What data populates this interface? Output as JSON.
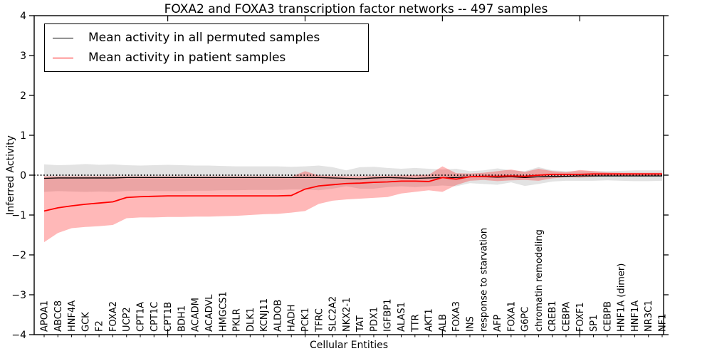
{
  "figure": {
    "title": "FOXA2 and FOXA3 transcription factor networks -- 497 samples",
    "xlabel": "Cellular Entities",
    "ylabel": "Inferred Activity"
  },
  "legend": {
    "items": [
      {
        "key": "permuted",
        "label": "Mean activity in all permuted samples",
        "color": "#000000"
      },
      {
        "key": "patient",
        "label": "Mean activity in patient samples",
        "color": "#ff0000"
      }
    ]
  },
  "chart_data": {
    "type": "line",
    "title": "FOXA2 and FOXA3 transcription factor networks -- 497 samples",
    "xlabel": "Cellular Entities",
    "ylabel": "Inferred Activity",
    "ylim": [
      -4,
      4
    ],
    "yticks": [
      -4,
      -3,
      -2,
      -1,
      0,
      1,
      2,
      3,
      4
    ],
    "zero_line": 0,
    "grid": false,
    "legend_position": "upper left",
    "x_major_tick_indices": [
      9,
      19,
      29,
      39
    ],
    "categories": [
      "APOA1",
      "ABCC8",
      "HNF4A",
      "GCK",
      "F2",
      "FOXA2",
      "UCP2",
      "CPT1A",
      "CPT1C",
      "CPT1B",
      "BDH1",
      "ACADM",
      "ACADVL",
      "HMGCS1",
      "PKLR",
      "DLK1",
      "KCNJ11",
      "ALDOB",
      "HADH",
      "PCK1",
      "TFRC",
      "SLC2A2",
      "NKX2-1",
      "TAT",
      "PDX1",
      "IGFBP1",
      "ALAS1",
      "TTR",
      "AKT1",
      "ALB",
      "FOXA3",
      "INS",
      "response to starvation",
      "AFP",
      "FOXA1",
      "G6PC",
      "chromatin remodeling",
      "CREB1",
      "CEBPA",
      "FOXF1",
      "SP1",
      "CEBPB",
      "HNF1A (dimer)",
      "HNF1A",
      "NR3C1",
      "NF1"
    ],
    "series": [
      {
        "key": "permuted",
        "name": "Mean activity in all permuted samples",
        "color": "#000000",
        "line_width": 1.3,
        "band_color": "rgba(0,0,0,0.11)",
        "values": [
          -0.08,
          -0.07,
          -0.07,
          -0.07,
          -0.07,
          -0.07,
          -0.06,
          -0.06,
          -0.06,
          -0.06,
          -0.06,
          -0.06,
          -0.06,
          -0.06,
          -0.06,
          -0.06,
          -0.06,
          -0.06,
          -0.06,
          -0.06,
          -0.06,
          -0.07,
          -0.08,
          -0.09,
          -0.07,
          -0.06,
          -0.07,
          -0.08,
          -0.07,
          -0.06,
          -0.06,
          -0.04,
          -0.04,
          -0.05,
          -0.04,
          -0.06,
          -0.04,
          -0.03,
          -0.03,
          -0.02,
          -0.02,
          -0.02,
          -0.02,
          -0.02,
          -0.02,
          -0.02
        ],
        "band_upper": [
          0.27,
          0.25,
          0.26,
          0.28,
          0.26,
          0.27,
          0.25,
          0.24,
          0.25,
          0.26,
          0.25,
          0.24,
          0.24,
          0.23,
          0.22,
          0.22,
          0.22,
          0.22,
          0.21,
          0.22,
          0.24,
          0.2,
          0.12,
          0.2,
          0.21,
          0.18,
          0.16,
          0.18,
          0.16,
          0.14,
          0.16,
          0.1,
          0.12,
          0.17,
          0.12,
          0.1,
          0.2,
          0.12,
          0.1,
          0.1,
          0.1,
          0.1,
          0.11,
          0.12,
          0.12,
          0.12
        ],
        "band_lower": [
          -0.42,
          -0.4,
          -0.41,
          -0.42,
          -0.41,
          -0.42,
          -0.4,
          -0.39,
          -0.4,
          -0.4,
          -0.4,
          -0.39,
          -0.39,
          -0.38,
          -0.38,
          -0.37,
          -0.37,
          -0.37,
          -0.36,
          -0.36,
          -0.38,
          -0.34,
          -0.28,
          -0.34,
          -0.34,
          -0.3,
          -0.28,
          -0.3,
          -0.28,
          -0.26,
          -0.28,
          -0.2,
          -0.22,
          -0.24,
          -0.18,
          -0.27,
          -0.22,
          -0.16,
          -0.14,
          -0.14,
          -0.14,
          -0.13,
          -0.14,
          -0.15,
          -0.15,
          -0.14
        ]
      },
      {
        "key": "patient",
        "name": "Mean activity in patient samples",
        "color": "#ff0000",
        "line_width": 1.8,
        "band_color": "rgba(255,0,0,0.28)",
        "values": [
          -0.9,
          -0.82,
          -0.77,
          -0.73,
          -0.7,
          -0.67,
          -0.56,
          -0.54,
          -0.53,
          -0.52,
          -0.52,
          -0.52,
          -0.52,
          -0.52,
          -0.52,
          -0.52,
          -0.52,
          -0.52,
          -0.51,
          -0.35,
          -0.27,
          -0.24,
          -0.21,
          -0.2,
          -0.18,
          -0.17,
          -0.15,
          -0.15,
          -0.16,
          -0.06,
          -0.1,
          -0.04,
          -0.03,
          -0.03,
          -0.02,
          -0.03,
          0.0,
          0.02,
          0.02,
          0.02,
          0.03,
          0.03,
          0.03,
          0.03,
          0.03,
          0.03
        ],
        "band_upper": [
          -0.03,
          -0.03,
          -0.03,
          -0.03,
          -0.03,
          -0.03,
          -0.03,
          -0.03,
          -0.03,
          -0.03,
          -0.03,
          -0.03,
          -0.03,
          -0.03,
          -0.03,
          -0.03,
          -0.03,
          -0.03,
          -0.04,
          0.1,
          -0.01,
          -0.02,
          -0.03,
          -0.03,
          -0.02,
          -0.02,
          -0.01,
          0.0,
          0.01,
          0.22,
          0.05,
          0.04,
          0.06,
          0.1,
          0.14,
          0.08,
          0.16,
          0.1,
          0.07,
          0.13,
          0.1,
          0.07,
          0.06,
          0.06,
          0.06,
          0.06
        ],
        "band_lower": [
          -1.68,
          -1.45,
          -1.33,
          -1.3,
          -1.28,
          -1.25,
          -1.08,
          -1.06,
          -1.06,
          -1.05,
          -1.05,
          -1.04,
          -1.04,
          -1.03,
          -1.02,
          -1.0,
          -0.98,
          -0.97,
          -0.94,
          -0.9,
          -0.72,
          -0.64,
          -0.61,
          -0.59,
          -0.57,
          -0.55,
          -0.46,
          -0.42,
          -0.38,
          -0.42,
          -0.25,
          -0.14,
          -0.12,
          -0.15,
          -0.13,
          -0.12,
          -0.14,
          -0.08,
          -0.05,
          -0.06,
          -0.04,
          -0.02,
          -0.01,
          -0.01,
          -0.01,
          -0.01
        ]
      }
    ]
  }
}
